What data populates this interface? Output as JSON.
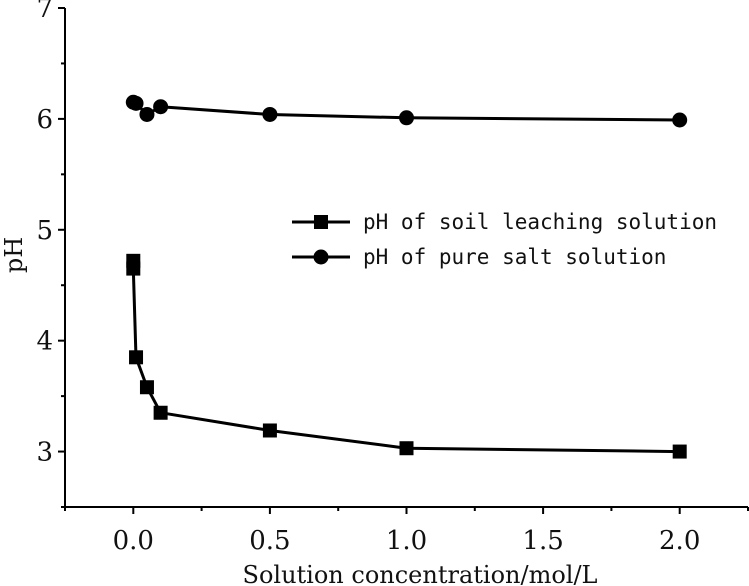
{
  "chart_data": {
    "type": "line",
    "title": "",
    "xlabel": "Solution concentration/mol/L",
    "ylabel": "pH",
    "xlim": [
      -0.25,
      2.25
    ],
    "ylim": [
      2.5,
      7
    ],
    "xticks": [
      0.0,
      0.5,
      1.0,
      1.5,
      2.0
    ],
    "xtick_labels": [
      "0.0",
      "0.5",
      "1.0",
      "1.5",
      "2.0"
    ],
    "yticks": [
      3,
      4,
      5,
      6,
      7
    ],
    "ytick_labels": [
      "3",
      "4",
      "5",
      "6",
      "7"
    ],
    "grid": false,
    "legend_position": "center-right",
    "series": [
      {
        "name": "pH of soil leaching solution",
        "marker": "square",
        "x": [
          0.0,
          0.0,
          0.01,
          0.05,
          0.1,
          0.5,
          1.0,
          2.0
        ],
        "y": [
          4.72,
          4.65,
          3.85,
          3.58,
          3.35,
          3.19,
          3.03,
          3.0
        ]
      },
      {
        "name": "pH of pure salt solution",
        "marker": "circle",
        "x": [
          0.0,
          0.01,
          0.05,
          0.1,
          0.5,
          1.0,
          2.0
        ],
        "y": [
          6.15,
          6.14,
          6.04,
          6.11,
          6.04,
          6.01,
          5.99
        ]
      }
    ],
    "colors": {
      "line": "#000000",
      "marker": "#000000"
    }
  }
}
